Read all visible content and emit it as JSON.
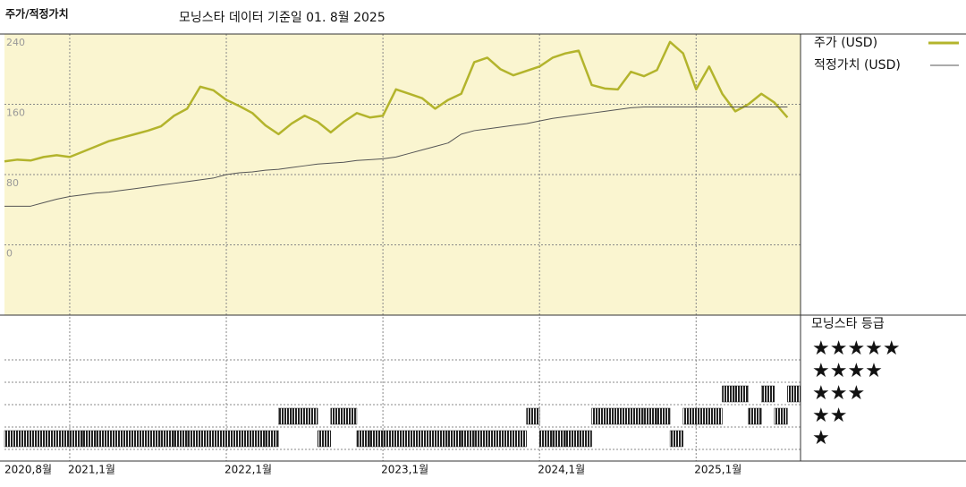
{
  "chart_data": [
    {
      "type": "line",
      "title": "주가/적정가치",
      "subtitle": "모닝스타 데이터 기준일 01. 8월 2025",
      "x": [
        "2020-08",
        "2020-09",
        "2020-10",
        "2020-11",
        "2020-12",
        "2021-01",
        "2021-02",
        "2021-03",
        "2021-04",
        "2021-05",
        "2021-06",
        "2021-07",
        "2021-08",
        "2021-09",
        "2021-10",
        "2021-11",
        "2021-12",
        "2022-01",
        "2022-02",
        "2022-03",
        "2022-04",
        "2022-05",
        "2022-06",
        "2022-07",
        "2022-08",
        "2022-09",
        "2022-10",
        "2022-11",
        "2022-12",
        "2023-01",
        "2023-02",
        "2023-03",
        "2023-04",
        "2023-05",
        "2023-06",
        "2023-07",
        "2023-08",
        "2023-09",
        "2023-10",
        "2023-11",
        "2023-12",
        "2024-01",
        "2024-02",
        "2024-03",
        "2024-04",
        "2024-05",
        "2024-06",
        "2024-07",
        "2024-08",
        "2024-09",
        "2024-10",
        "2024-11",
        "2024-12",
        "2025-01",
        "2025-02",
        "2025-03",
        "2025-04",
        "2025-05",
        "2025-06",
        "2025-07",
        "2025-08"
      ],
      "series": [
        {
          "name": "주가 (USD)",
          "color": "#b3b42c",
          "values": [
            95,
            97,
            96,
            100,
            102,
            100,
            106,
            112,
            118,
            122,
            126,
            130,
            135,
            147,
            155,
            180,
            176,
            165,
            158,
            150,
            136,
            126,
            138,
            147,
            140,
            128,
            140,
            150,
            145,
            147,
            177,
            172,
            167,
            155,
            165,
            172,
            208,
            213,
            200,
            193,
            198,
            203,
            213,
            218,
            221,
            182,
            178,
            177,
            197,
            192,
            199,
            231,
            218,
            177,
            203,
            172,
            152,
            160,
            172,
            162,
            145
          ]
        },
        {
          "name": "적정가치 (USD)",
          "color": "#555555",
          "values": [
            44,
            44,
            44,
            48,
            52,
            55,
            57,
            59,
            60,
            62,
            64,
            66,
            68,
            70,
            72,
            74,
            76,
            80,
            82,
            83,
            85,
            86,
            88,
            90,
            92,
            93,
            94,
            96,
            97,
            98,
            100,
            104,
            108,
            112,
            116,
            126,
            130,
            132,
            134,
            136,
            138,
            141,
            144,
            146,
            148,
            150,
            152,
            154,
            156,
            157,
            157,
            157,
            157,
            157,
            157,
            157,
            157,
            157,
            157,
            157,
            157
          ]
        }
      ],
      "xlim": [
        "2020-08",
        "2025-09"
      ],
      "xticks": [
        {
          "value": "2020-08",
          "label": "2020,8월"
        },
        {
          "value": "2021-01",
          "label": "2021,1월"
        },
        {
          "value": "2022-01",
          "label": "2022,1월"
        },
        {
          "value": "2023-01",
          "label": "2023,1월"
        },
        {
          "value": "2024-01",
          "label": "2024,1월"
        },
        {
          "value": "2025-01",
          "label": "2025,1월"
        }
      ],
      "ylim": [
        -80,
        240
      ],
      "yticks": [
        0,
        80,
        160,
        240
      ],
      "grid": true,
      "background": "#faf5d0"
    },
    {
      "type": "rating",
      "title": "모닝스타 등급",
      "color": "#222222",
      "levels": [
        "★",
        "★★",
        "★★★",
        "★★★★",
        "★★★★★"
      ],
      "values": [
        1,
        1,
        1,
        1,
        1,
        1,
        1,
        1,
        1,
        1,
        1,
        1,
        1,
        1,
        1,
        1,
        1,
        1,
        1,
        1,
        1,
        2,
        2,
        2,
        1,
        2,
        2,
        1,
        1,
        1,
        1,
        1,
        1,
        1,
        1,
        1,
        1,
        1,
        1,
        1,
        2,
        1,
        1,
        1,
        1,
        2,
        2,
        2,
        2,
        2,
        2,
        1,
        2,
        2,
        2,
        3,
        3,
        2,
        3,
        2,
        3
      ]
    }
  ]
}
